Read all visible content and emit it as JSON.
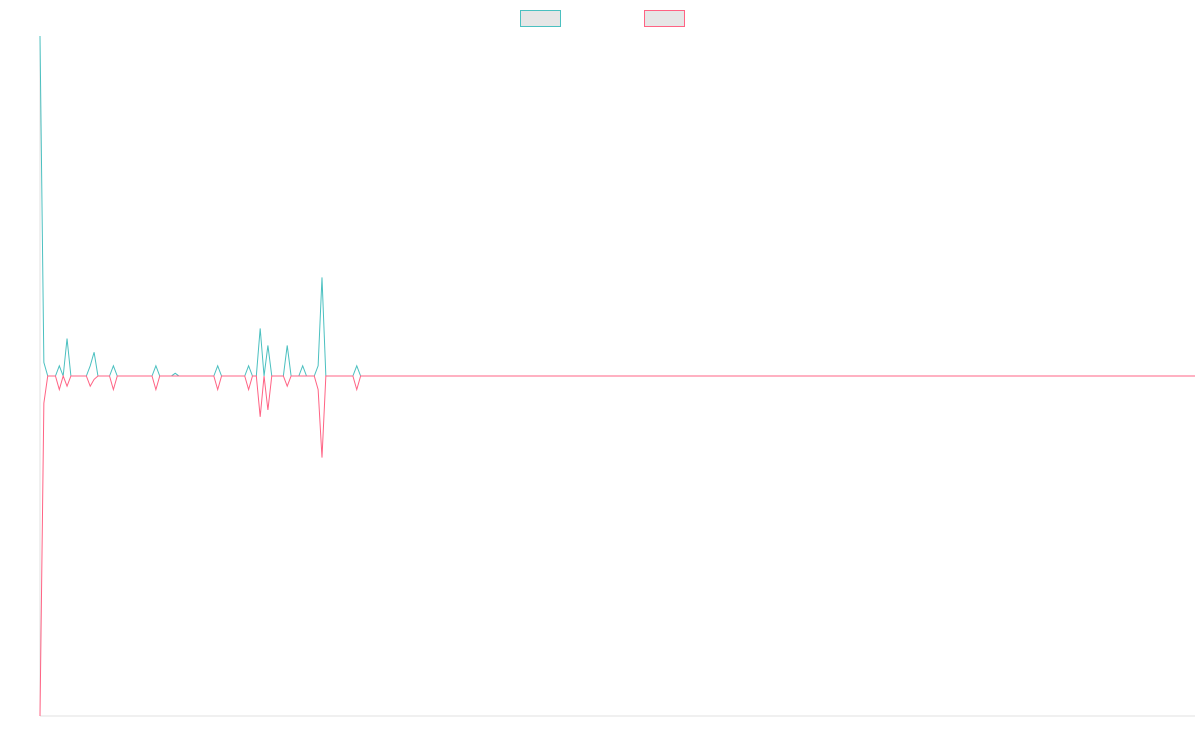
{
  "chart_data": {
    "type": "line",
    "title": "",
    "xlabel": "",
    "ylabel": "",
    "grid": false,
    "legend_position": "top-center",
    "ylim": [
      -100,
      100
    ],
    "x_count": 300,
    "series": [
      {
        "name": "",
        "color": "#4bc0c0",
        "fill": "#e6e6e6",
        "points": [
          [
            0,
            100
          ],
          [
            1,
            4
          ],
          [
            2,
            0
          ],
          [
            3,
            0
          ],
          [
            4,
            0
          ],
          [
            5,
            3
          ],
          [
            6,
            0
          ],
          [
            7,
            11
          ],
          [
            8,
            0
          ],
          [
            12,
            0
          ],
          [
            13,
            3
          ],
          [
            14,
            7
          ],
          [
            15,
            0
          ],
          [
            16,
            0
          ],
          [
            18,
            0
          ],
          [
            19,
            3
          ],
          [
            20,
            0
          ],
          [
            29,
            0
          ],
          [
            30,
            3
          ],
          [
            31,
            0
          ],
          [
            34,
            0
          ],
          [
            35,
            0.8
          ],
          [
            36,
            0
          ],
          [
            45,
            0
          ],
          [
            46,
            3
          ],
          [
            47,
            0
          ],
          [
            53,
            0
          ],
          [
            54,
            3
          ],
          [
            55,
            0
          ],
          [
            56,
            0
          ],
          [
            57,
            14
          ],
          [
            58,
            0
          ],
          [
            59,
            9
          ],
          [
            60,
            0
          ],
          [
            63,
            0
          ],
          [
            64,
            9
          ],
          [
            65,
            0
          ],
          [
            67,
            0
          ],
          [
            68,
            3
          ],
          [
            69,
            0
          ],
          [
            71,
            0
          ],
          [
            72,
            3
          ],
          [
            73,
            29
          ],
          [
            74,
            0
          ],
          [
            81,
            0
          ],
          [
            82,
            3
          ],
          [
            83,
            0
          ],
          [
            299,
            0
          ]
        ]
      },
      {
        "name": "",
        "color": "#ff6384",
        "fill": "#e6e6e6",
        "points": [
          [
            0,
            -100
          ],
          [
            1,
            -8
          ],
          [
            2,
            0
          ],
          [
            3,
            0
          ],
          [
            4,
            0
          ],
          [
            5,
            -4
          ],
          [
            6,
            0
          ],
          [
            7,
            -3
          ],
          [
            8,
            0
          ],
          [
            12,
            0
          ],
          [
            13,
            -3
          ],
          [
            14,
            -1
          ],
          [
            15,
            0
          ],
          [
            18,
            0
          ],
          [
            19,
            -4
          ],
          [
            20,
            0
          ],
          [
            29,
            0
          ],
          [
            30,
            -4
          ],
          [
            31,
            0
          ],
          [
            45,
            0
          ],
          [
            46,
            -4
          ],
          [
            47,
            0
          ],
          [
            53,
            0
          ],
          [
            54,
            -4
          ],
          [
            55,
            0
          ],
          [
            56,
            0
          ],
          [
            57,
            -12
          ],
          [
            58,
            0
          ],
          [
            59,
            -10
          ],
          [
            60,
            0
          ],
          [
            63,
            0
          ],
          [
            64,
            -3
          ],
          [
            65,
            0
          ],
          [
            71,
            0
          ],
          [
            72,
            -4
          ],
          [
            73,
            -24
          ],
          [
            74,
            0
          ],
          [
            81,
            0
          ],
          [
            82,
            -4
          ],
          [
            83,
            0
          ],
          [
            299,
            0
          ]
        ]
      }
    ]
  }
}
